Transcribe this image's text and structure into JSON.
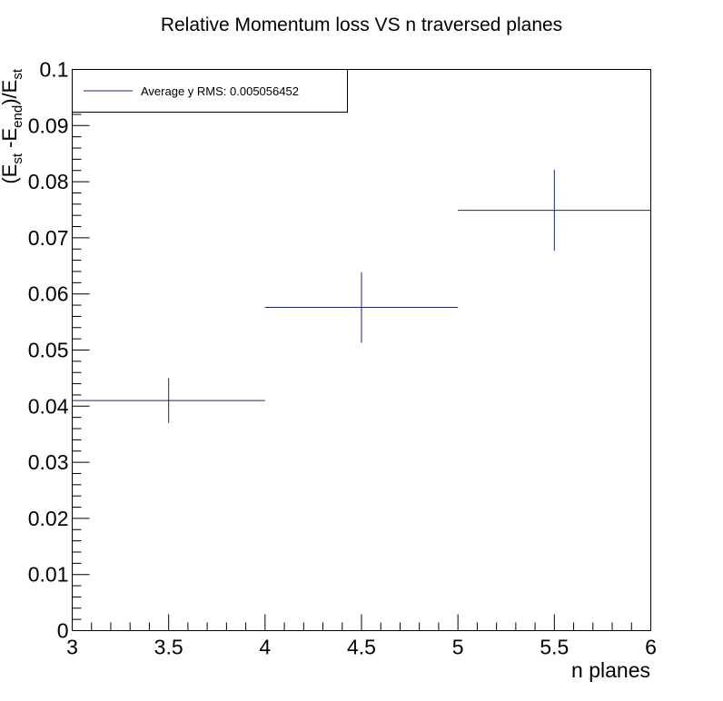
{
  "chart_data": {
    "type": "scatter",
    "title": "Relative Momentum loss VS n traversed planes",
    "xlabel": "n planes",
    "ylabel_parts": [
      "(E",
      "st",
      " -E",
      "end",
      ")/E",
      "st"
    ],
    "xlim": [
      3,
      6
    ],
    "ylim": [
      0,
      0.1
    ],
    "x_ticks": [
      "3",
      "3.5",
      "4",
      "4.5",
      "5",
      "5.5",
      "6"
    ],
    "y_ticks": [
      "0",
      "0.01",
      "0.02",
      "0.03",
      "0.04",
      "0.05",
      "0.06",
      "0.07",
      "0.08",
      "0.09",
      "0.1"
    ],
    "grid": false,
    "legend": {
      "position": "top-left",
      "entries": [
        "Average y RMS: 0.005056452"
      ]
    },
    "series": [
      {
        "name": "Average y RMS: 0.005056452",
        "color": "#1a237e",
        "points": [
          {
            "x": 3.5,
            "y": 0.041,
            "xerr": 0.5,
            "yerr": 0.004
          },
          {
            "x": 4.5,
            "y": 0.0576,
            "xerr": 0.5,
            "yerr": 0.0063
          },
          {
            "x": 5.5,
            "y": 0.0749,
            "xerr": 0.5,
            "yerr": 0.0072
          }
        ]
      }
    ]
  }
}
